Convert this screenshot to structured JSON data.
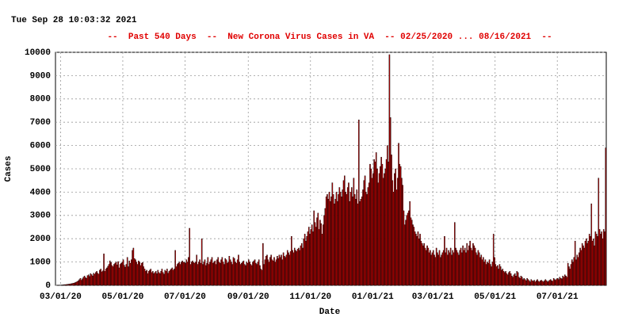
{
  "chart_data": {
    "type": "bar",
    "timestamp": "Tue Sep 28 10:03:32 2021",
    "title": "--  Past 540 Days  --  New Corona Virus Cases in VA  -- 02/25/2020 ... 08/16/2021  --",
    "x_label": "Date",
    "y_label": "Cases",
    "color": "#c00000",
    "title_color": "#e00000",
    "xlim": [
      0,
      540
    ],
    "xticks": [
      {
        "value": 5,
        "label": "03/01/20"
      },
      {
        "value": 66,
        "label": "05/01/20"
      },
      {
        "value": 127,
        "label": "07/01/20"
      },
      {
        "value": 189,
        "label": "09/01/20"
      },
      {
        "value": 250,
        "label": "11/01/20"
      },
      {
        "value": 311,
        "label": "01/01/21"
      },
      {
        "value": 370,
        "label": "03/01/21"
      },
      {
        "value": 431,
        "label": "05/01/21"
      },
      {
        "value": 492,
        "label": "07/01/21"
      }
    ],
    "ylim": [
      0,
      10000
    ],
    "yticks": [
      0,
      1000,
      2000,
      3000,
      4000,
      5000,
      6000,
      7000,
      8000,
      9000,
      10000
    ],
    "grid": true,
    "values": [
      0,
      2,
      3,
      5,
      8,
      12,
      15,
      20,
      25,
      30,
      35,
      40,
      45,
      55,
      60,
      70,
      80,
      90,
      100,
      120,
      140,
      160,
      200,
      250,
      300,
      220,
      280,
      350,
      400,
      330,
      300,
      420,
      450,
      380,
      500,
      460,
      400,
      520,
      480,
      550,
      600,
      520,
      480,
      650,
      700,
      580,
      620,
      1350,
      600,
      700,
      750,
      820,
      900,
      1050,
      980,
      850,
      800,
      900,
      950,
      1000,
      880,
      1020,
      750,
      900,
      950,
      1000,
      1100,
      860,
      780,
      900,
      1200,
      800,
      1050,
      950,
      1100,
      1500,
      1600,
      1150,
      1100,
      1000,
      900,
      1050,
      1000,
      850,
      950,
      980,
      800,
      700,
      600,
      650,
      500,
      600,
      650,
      700,
      550,
      600,
      500,
      550,
      600,
      500,
      650,
      550,
      500,
      600,
      700,
      550,
      480,
      650,
      600,
      700,
      520,
      600,
      650,
      700,
      750,
      650,
      700,
      1500,
      800,
      900,
      950,
      1000,
      900,
      1000,
      1050,
      980,
      1000,
      950,
      1100,
      1000,
      1200,
      2450,
      900,
      1000,
      1050,
      980,
      950,
      1000,
      1300,
      900,
      1000,
      1100,
      950,
      2000,
      900,
      1000,
      1100,
      850,
      950,
      1200,
      900,
      1000,
      1100,
      1200,
      950,
      1000,
      1050,
      900,
      1100,
      1200,
      1000,
      950,
      1100,
      1200,
      1000,
      900,
      1150,
      1100,
      950,
      1000,
      1250,
      1100,
      1000,
      900,
      1200,
      1150,
      1000,
      950,
      1100,
      1300,
      1000,
      900,
      950,
      1000,
      1050,
      900,
      850,
      1000,
      950,
      1100,
      1000,
      900,
      850,
      1000,
      1050,
      1100,
      950,
      900,
      1000,
      1100,
      850,
      700,
      650,
      1800,
      900,
      1100,
      1250,
      1300,
      1100,
      1000,
      1200,
      1300,
      1100,
      1050,
      1200,
      1000,
      1100,
      1250,
      1150,
      1300,
      1200,
      1300,
      1100,
      1400,
      1250,
      1200,
      1300,
      1500,
      1400,
      1300,
      1450,
      2100,
      1500,
      1400,
      1600,
      1500,
      1450,
      1550,
      1600,
      1500,
      1700,
      1800,
      1600,
      2000,
      2200,
      1900,
      2100,
      2300,
      2500,
      2200,
      2400,
      2600,
      2300,
      3200,
      2700,
      2500,
      2900,
      3100,
      2400,
      2800,
      2650,
      2200,
      2600,
      3000,
      3300,
      3800,
      3900,
      3700,
      4000,
      3600,
      3800,
      4400,
      3900,
      3500,
      3700,
      4000,
      3600,
      3900,
      4200,
      4000,
      3800,
      4100,
      4500,
      4700,
      4000,
      3900,
      4200,
      4400,
      3600,
      4000,
      4200,
      3800,
      4600,
      3900,
      3700,
      4100,
      3500,
      7100,
      3600,
      3700,
      3800,
      4100,
      4500,
      4700,
      4000,
      3900,
      4200,
      4400,
      5200,
      5000,
      4600,
      4800,
      5400,
      5300,
      5700,
      5000,
      4400,
      4800,
      5100,
      5500,
      5200,
      4600,
      4800,
      5000,
      5400,
      6000,
      5300,
      9900,
      7200,
      5600,
      4500,
      4000,
      4800,
      5000,
      4100,
      4600,
      6100,
      5200,
      5100,
      4600,
      4300,
      3200,
      2600,
      2800,
      3000,
      3100,
      3200,
      3600,
      2900,
      2800,
      2600,
      2500,
      2300,
      2200,
      2100,
      2300,
      2000,
      2200,
      1900,
      1800,
      1700,
      1800,
      1600,
      1500,
      1700,
      1600,
      1400,
      1500,
      1300,
      1400,
      1500,
      1300,
      1200,
      1600,
      1400,
      1300,
      1500,
      1200,
      1300,
      1400,
      1500,
      2100,
      1400,
      1600,
      1300,
      1500,
      1400,
      1600,
      1300,
      1500,
      1400,
      2700,
      1600,
      1500,
      1400,
      1300,
      1500,
      1600,
      1400,
      1700,
      1500,
      1600,
      1400,
      1800,
      1500,
      1700,
      1900,
      1600,
      1500,
      1800,
      1700,
      1600,
      1400,
      1300,
      1500,
      1400,
      1200,
      1300,
      1100,
      1200,
      1000,
      1100,
      900,
      1000,
      950,
      1100,
      900,
      800,
      1000,
      2200,
      1200,
      900,
      800,
      850,
      700,
      900,
      800,
      650,
      700,
      600,
      550,
      600,
      500,
      450,
      550,
      600,
      500,
      400,
      350,
      450,
      500,
      400,
      600,
      550,
      350,
      300,
      400,
      350,
      250,
      300,
      250,
      200,
      300,
      250,
      200,
      150,
      250,
      200,
      180,
      220,
      150,
      200,
      250,
      180,
      150,
      200,
      220,
      180,
      150,
      200,
      250,
      200,
      150,
      180,
      220,
      250,
      200,
      180,
      300,
      250,
      220,
      280,
      300,
      250,
      350,
      300,
      280,
      400,
      350,
      450,
      400,
      350,
      950,
      800,
      700,
      900,
      1100,
      1000,
      1200,
      1900,
      1100,
      1300,
      1200,
      1400,
      1600,
      1500,
      1800,
      1700,
      1600,
      1900,
      2000,
      1800,
      1900,
      2200,
      2100,
      3500,
      1900,
      2000,
      1700,
      2300,
      2200,
      2100,
      4600,
      2400,
      2200,
      2300,
      2000,
      2400,
      2300,
      5900
    ]
  }
}
